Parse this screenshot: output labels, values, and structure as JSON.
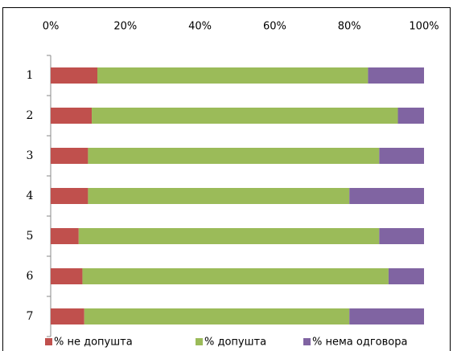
{
  "chart_data": {
    "type": "stacked-barh",
    "categories": [
      "1",
      "2",
      "3",
      "4",
      "5",
      "6",
      "7"
    ],
    "series": [
      {
        "name": "% не допушта",
        "color": "#c0504d",
        "values": [
          12.5,
          11,
          10,
          10,
          7.5,
          8.5,
          9
        ]
      },
      {
        "name": "% допушта",
        "color": "#9bbb59",
        "values": [
          72.5,
          82,
          78,
          70,
          80.5,
          82,
          71
        ]
      },
      {
        "name": "% нема одговора",
        "color": "#8064a2",
        "values": [
          15,
          7,
          12,
          20,
          12,
          9.5,
          20
        ]
      }
    ],
    "xlim": [
      0,
      100
    ],
    "xticks": [
      {
        "value": 0,
        "label": "0%"
      },
      {
        "value": 20,
        "label": "20%"
      },
      {
        "value": 40,
        "label": "40%"
      },
      {
        "value": 60,
        "label": "60%"
      },
      {
        "value": 80,
        "label": "80%"
      },
      {
        "value": 100,
        "label": "100%"
      }
    ],
    "legend": "bottom"
  }
}
